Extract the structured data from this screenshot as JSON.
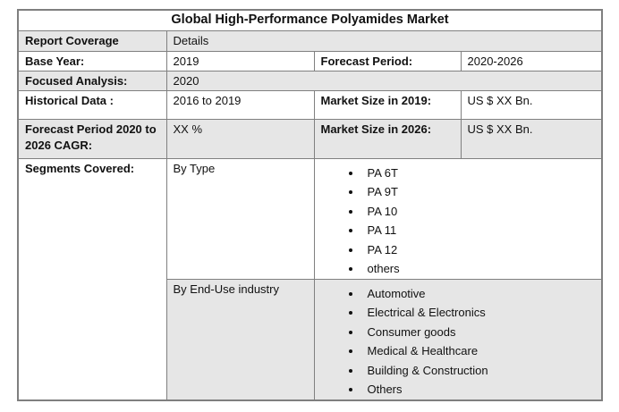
{
  "title": "Global High-Performance Polyamides Market",
  "colors": {
    "row_shade": "#e6e6e6",
    "border": "#808080",
    "outer_border": "#7f7f7f",
    "text": "#111111",
    "background": "#ffffff"
  },
  "rows": {
    "report_coverage": {
      "label": "Report Coverage",
      "value": "Details"
    },
    "base_year": {
      "label": "Base Year:",
      "value": "2019"
    },
    "forecast_period": {
      "label": "Forecast Period:",
      "value": "2020-2026"
    },
    "focused_analysis": {
      "label": "Focused Analysis:",
      "value": "2020"
    },
    "historical_data": {
      "label": "Historical Data :",
      "value": "2016 to 2019"
    },
    "market_size_2019": {
      "label": "Market Size in 2019:",
      "value": "US $ XX Bn."
    },
    "forecast_cagr": {
      "label": "Forecast Period 2020 to 2026 CAGR:",
      "value": "XX %"
    },
    "market_size_2026": {
      "label": "Market Size in 2026:",
      "value": "US $ XX Bn."
    },
    "segments": {
      "label": "Segments Covered:",
      "by_type": {
        "label": "By Type",
        "items": [
          "PA 6T",
          "PA 9T",
          "PA 10",
          "PA 11",
          "PA 12",
          "others"
        ]
      },
      "by_end_use": {
        "label": "By End-Use industry",
        "items": [
          "Automotive",
          "Electrical & Electronics",
          "Consumer goods",
          "Medical & Healthcare",
          "Building & Construction",
          "Others"
        ]
      }
    }
  }
}
